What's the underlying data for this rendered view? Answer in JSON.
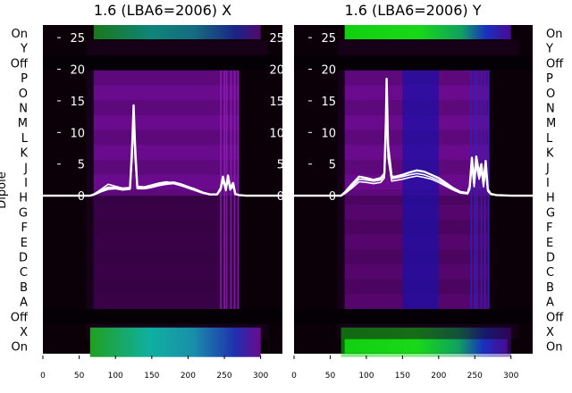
{
  "figure": {
    "y_axis_label": "Dipole",
    "row_labels": [
      "On",
      "Y",
      "Off",
      "P",
      "O",
      "N",
      "M",
      "L",
      "K",
      "J",
      "I",
      "H",
      "G",
      "F",
      "E",
      "D",
      "C",
      "B",
      "A",
      "Off",
      "X",
      "On"
    ]
  },
  "colors": {
    "background": "#0b0008",
    "band_dark": "#17001a",
    "band_purple": "#6a0a8c",
    "band_blue": "#1a10a8",
    "on_stripe_x": "#12a8a0",
    "on_stripe_y": "#14d814",
    "trace": "#ffffff"
  },
  "chart_data": [
    {
      "type": "line",
      "title": "1.6 (LBA6=2006) X",
      "xlim": [
        0,
        330
      ],
      "ylim": [
        -25,
        27
      ],
      "x_ticks": [
        0,
        50,
        100,
        150,
        200,
        250,
        300
      ],
      "y_ticks": [
        0,
        5,
        10,
        15,
        20,
        25
      ],
      "background": "heatmap",
      "series": [
        {
          "x": [
            0,
            65,
            70,
            80,
            90,
            100,
            110,
            120,
            123,
            125,
            127,
            130,
            140,
            150,
            160,
            170,
            180,
            190,
            200,
            210,
            220,
            230,
            240,
            245,
            248,
            252,
            255,
            258,
            262,
            265,
            270,
            280,
            300,
            330
          ],
          "y": [
            0,
            0,
            0.2,
            0.8,
            1.3,
            1.3,
            1.0,
            1.2,
            8,
            14.3,
            8,
            1.3,
            1.3,
            1.5,
            1.8,
            2.0,
            2.1,
            1.8,
            1.4,
            1.0,
            0.5,
            0.2,
            0.2,
            1.2,
            3.0,
            1.0,
            3.2,
            1.2,
            2.0,
            0.3,
            0.1,
            0,
            0,
            0
          ]
        },
        {
          "x": [
            0,
            65,
            70,
            80,
            90,
            100,
            110,
            120,
            123,
            125,
            127,
            130,
            140,
            150,
            160,
            170,
            180,
            190,
            200,
            210,
            220,
            230,
            240,
            245,
            248,
            252,
            255,
            258,
            262,
            265,
            270,
            280,
            300,
            330
          ],
          "y": [
            0,
            0,
            0.2,
            1.0,
            1.8,
            1.5,
            1.2,
            1.3,
            7,
            13.5,
            7,
            1.5,
            1.4,
            1.7,
            2.0,
            2.2,
            2.0,
            1.6,
            1.2,
            0.8,
            0.4,
            0.2,
            0.2,
            1.0,
            2.6,
            0.8,
            2.8,
            1.0,
            1.6,
            0.2,
            0.1,
            0,
            0,
            0
          ]
        },
        {
          "x": [
            0,
            65,
            70,
            80,
            90,
            100,
            110,
            120,
            123,
            125,
            127,
            130,
            140,
            150,
            160,
            170,
            180,
            190,
            200,
            210,
            220,
            230,
            240,
            245,
            248,
            252,
            255,
            258,
            262,
            265,
            270,
            280,
            300,
            330
          ],
          "y": [
            0,
            0,
            0.1,
            0.6,
            1.0,
            1.1,
            0.9,
            1.0,
            6,
            12.5,
            6,
            1.1,
            1.1,
            1.3,
            1.6,
            1.8,
            1.9,
            1.6,
            1.3,
            0.9,
            0.4,
            0.2,
            0.2,
            0.9,
            2.4,
            0.8,
            2.6,
            0.9,
            1.5,
            0.2,
            0.1,
            0,
            0,
            0
          ]
        }
      ]
    },
    {
      "type": "line",
      "title": "1.6 (LBA6=2006) Y",
      "xlim": [
        0,
        330
      ],
      "ylim": [
        -25,
        27
      ],
      "x_ticks": [
        0,
        50,
        100,
        150,
        200,
        250,
        300
      ],
      "y_ticks": [
        0,
        5,
        10,
        15,
        20,
        25
      ],
      "background": "heatmap",
      "series": [
        {
          "x": [
            0,
            65,
            70,
            80,
            90,
            100,
            110,
            120,
            125,
            127,
            128,
            130,
            135,
            140,
            150,
            160,
            170,
            180,
            190,
            200,
            210,
            220,
            230,
            240,
            243,
            246,
            249,
            252,
            256,
            259,
            262,
            265,
            268,
            272,
            280,
            300,
            330
          ],
          "y": [
            0,
            0,
            0.5,
            1.8,
            3.0,
            2.8,
            2.5,
            2.8,
            3.5,
            12,
            18.5,
            8,
            3.0,
            3.0,
            3.3,
            3.7,
            4.0,
            3.8,
            3.3,
            2.8,
            2.0,
            1.2,
            0.6,
            0.4,
            1.5,
            6.0,
            2.0,
            6.2,
            3.5,
            5.0,
            2.0,
            5.5,
            1.0,
            0.3,
            0.1,
            0,
            0
          ]
        },
        {
          "x": [
            0,
            65,
            70,
            80,
            90,
            100,
            110,
            120,
            125,
            127,
            128,
            130,
            135,
            140,
            150,
            160,
            170,
            180,
            190,
            200,
            210,
            220,
            230,
            240,
            243,
            246,
            249,
            252,
            256,
            259,
            262,
            265,
            268,
            272,
            280,
            300,
            330
          ],
          "y": [
            0,
            0,
            0.4,
            1.5,
            2.6,
            2.5,
            2.3,
            2.5,
            3.2,
            10,
            16.5,
            7,
            2.7,
            2.8,
            3.0,
            3.3,
            3.5,
            3.3,
            2.9,
            2.4,
            1.7,
            1.0,
            0.5,
            0.3,
            1.2,
            5.2,
            1.6,
            5.4,
            3.0,
            4.4,
            1.6,
            4.6,
            0.8,
            0.2,
            0.1,
            0,
            0
          ]
        },
        {
          "x": [
            0,
            65,
            70,
            80,
            90,
            100,
            110,
            120,
            125,
            127,
            128,
            130,
            135,
            140,
            150,
            160,
            170,
            180,
            190,
            200,
            210,
            220,
            230,
            240,
            243,
            246,
            249,
            252,
            256,
            259,
            262,
            265,
            268,
            272,
            280,
            300,
            330
          ],
          "y": [
            0,
            0,
            0.3,
            1.2,
            2.2,
            2.1,
            1.9,
            2.1,
            2.8,
            9,
            15,
            6,
            2.3,
            2.4,
            2.6,
            2.9,
            3.1,
            2.9,
            2.6,
            2.1,
            1.5,
            0.9,
            0.4,
            0.3,
            1.0,
            4.6,
            1.4,
            4.8,
            2.6,
            3.9,
            1.4,
            4.0,
            0.7,
            0.2,
            0.1,
            0,
            0
          ]
        }
      ]
    }
  ]
}
